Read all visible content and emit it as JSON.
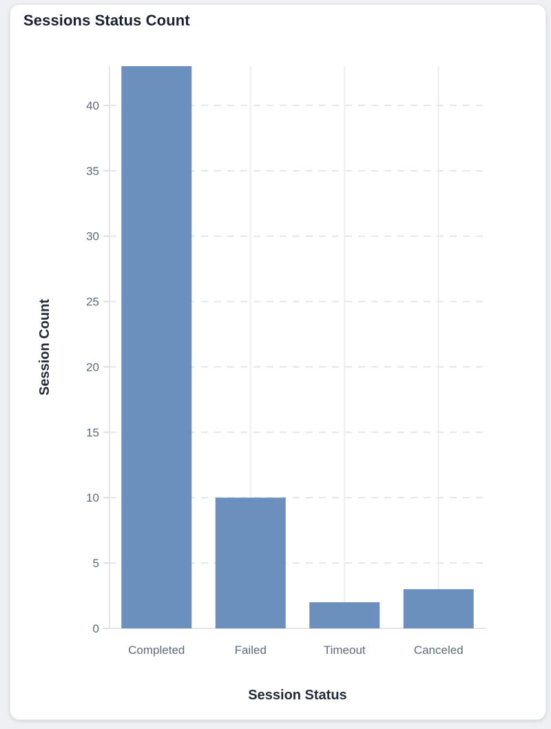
{
  "card": {
    "title": "Sessions Status Count"
  },
  "chart_data": {
    "type": "bar",
    "title": "Sessions Status Count",
    "categories": [
      "Completed",
      "Failed",
      "Timeout",
      "Canceled"
    ],
    "values": [
      43,
      10,
      2,
      3
    ],
    "xlabel": "Session Status",
    "ylabel": "Session Count",
    "ylim": [
      0,
      43
    ],
    "yticks": [
      0,
      5,
      10,
      15,
      20,
      25,
      30,
      35,
      40
    ],
    "bar_color": "#6b90bd",
    "grid": true,
    "grid_horizontal_style": "dashed",
    "grid_vertical_style": "solid",
    "legend": false,
    "colors": {
      "axis_line": "#e4e6ea",
      "grid_dashed": "#e4e6ea",
      "grid_solid": "#eceef1",
      "tick_mark": "#dcdfe5",
      "tick_text": "#5f6a79",
      "title_text": "#1b2130",
      "axis_title_text": "#252b38",
      "card_bg": "#ffffff",
      "page_bg": "#eef0f3"
    }
  }
}
